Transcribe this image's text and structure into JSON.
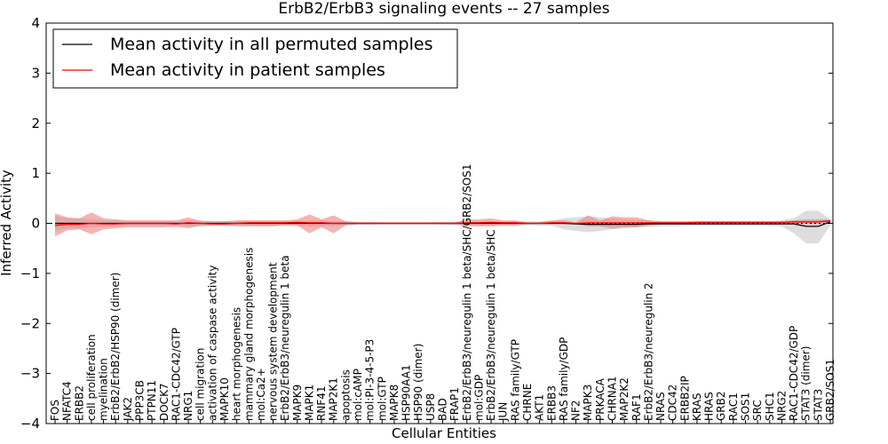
{
  "chart_data": {
    "type": "line",
    "title": "ErbB2/ErbB3 signaling events -- 27 samples",
    "xlabel": "Cellular Entities",
    "ylabel": "Inferred Activity",
    "ylim": [
      -4,
      4
    ],
    "yticks": [
      -4,
      -3,
      -2,
      -1,
      0,
      1,
      2,
      3,
      4
    ],
    "grid": false,
    "legend_placement": "top-left",
    "colors": {
      "permuted_line": "#000000",
      "patient_line": "#ff0000",
      "permuted_band": "#bbbbbb",
      "patient_band": "#f08080"
    },
    "categories": [
      "FOS",
      "NFATC4",
      "ERBB2",
      "cell proliferation",
      "myelination",
      "ErbB2/ErbB2/HSP90 (dimer)",
      "JAK2",
      "PPP3CB",
      "PTPN11",
      "DOCK7",
      "RAC1-CDC42/GTP",
      "NRG1",
      "cell migration",
      "activation of caspase activity",
      "MAPK10",
      "heart morphogenesis",
      "mammary gland morphogenesis",
      "mol:Ca2+",
      "nervous system development",
      "ErbB2/ErbB3/neuregulin 1 beta",
      "MAPK9",
      "MAPK1",
      "RNF41",
      "MAP2K1",
      "apoptosis",
      "mol:cAMP",
      "mol:PI-3-4-5-P3",
      "mol:GTP",
      "MAPK8",
      "HSP90AA1",
      "HSP90 (dimer)",
      "USP8",
      "BAD",
      "FRAP1",
      "ErbB2/ErbB3/neuregulin 1 beta/SHC/GRB2/SOS1",
      "mol:GDP",
      "ErbB2/ErbB3/neuregulin 1 beta/SHC",
      "JUN",
      "RAS family/GTP",
      "CHRNE",
      "AKT1",
      "ERBB3",
      "RAS family/GDP",
      "NF2",
      "MAPK3",
      "PRKACA",
      "CHRNA1",
      "MAP2K2",
      "RAF1",
      "ErbB2/ErbB3/neuregulin 2",
      "NRAS",
      "CDC42",
      "ERBB2IP",
      "KRAS",
      "HRAS",
      "GRB2",
      "RAC1",
      "SOS1",
      "SRC",
      "SHC1",
      "NRG2",
      "RAC1-CDC42/GDP",
      "STAT3 (dimer)",
      "STAT3",
      "GRB2/SOS1"
    ],
    "series": [
      {
        "name": "Mean activity in all permuted samples",
        "values": [
          0,
          0,
          0,
          0,
          0,
          0,
          0,
          0,
          0,
          0,
          0,
          0,
          0,
          0,
          0,
          0,
          0,
          0,
          0,
          0,
          0,
          0,
          0,
          0,
          0,
          0,
          0,
          0,
          0,
          0,
          0,
          0,
          0,
          0,
          0,
          0,
          0,
          0,
          0,
          0,
          0,
          0,
          0,
          -0.01,
          -0.02,
          -0.02,
          -0.02,
          -0.02,
          -0.02,
          -0.01,
          -0.01,
          -0.01,
          -0.01,
          -0.01,
          -0.01,
          -0.01,
          -0.01,
          -0.01,
          -0.01,
          -0.01,
          -0.01,
          -0.01,
          -0.06,
          -0.06,
          0.03
        ],
        "lower": [
          -0.15,
          -0.1,
          -0.1,
          -0.08,
          -0.06,
          -0.06,
          -0.05,
          -0.05,
          -0.05,
          -0.05,
          -0.05,
          -0.06,
          -0.06,
          -0.05,
          -0.05,
          -0.05,
          -0.05,
          -0.05,
          -0.05,
          -0.05,
          -0.05,
          -0.06,
          -0.06,
          -0.05,
          -0.04,
          -0.03,
          -0.03,
          -0.02,
          -0.02,
          -0.02,
          -0.02,
          -0.02,
          -0.03,
          -0.04,
          -0.04,
          -0.04,
          -0.04,
          -0.04,
          -0.04,
          -0.04,
          -0.04,
          -0.05,
          -0.12,
          -0.15,
          -0.18,
          -0.15,
          -0.12,
          -0.1,
          -0.08,
          -0.07,
          -0.06,
          -0.06,
          -0.05,
          -0.05,
          -0.05,
          -0.05,
          -0.05,
          -0.05,
          -0.05,
          -0.05,
          -0.06,
          -0.2,
          -0.4,
          -0.4,
          -0.05
        ],
        "upper": [
          0.15,
          0.1,
          0.1,
          0.08,
          0.06,
          0.06,
          0.05,
          0.05,
          0.05,
          0.05,
          0.05,
          0.06,
          0.06,
          0.05,
          0.05,
          0.05,
          0.05,
          0.05,
          0.05,
          0.05,
          0.05,
          0.06,
          0.06,
          0.05,
          0.04,
          0.03,
          0.03,
          0.02,
          0.02,
          0.02,
          0.02,
          0.02,
          0.03,
          0.04,
          0.04,
          0.04,
          0.04,
          0.04,
          0.04,
          0.04,
          0.04,
          0.05,
          0.1,
          0.12,
          0.14,
          0.12,
          0.1,
          0.08,
          0.07,
          0.06,
          0.05,
          0.05,
          0.05,
          0.05,
          0.05,
          0.05,
          0.05,
          0.05,
          0.05,
          0.05,
          0.06,
          0.1,
          0.25,
          0.25,
          0.08
        ]
      },
      {
        "name": "Mean activity in patient samples",
        "values": [
          -0.04,
          -0.02,
          -0.02,
          0,
          -0.01,
          -0.01,
          0,
          0,
          0,
          0,
          -0.01,
          0.01,
          0,
          -0.01,
          -0.01,
          0,
          0.01,
          0.01,
          0.01,
          0.01,
          0.02,
          0.01,
          0.01,
          0,
          0,
          0,
          0,
          0,
          0,
          0,
          0,
          0,
          0,
          0,
          0.01,
          0.01,
          0.02,
          0.01,
          0.01,
          0,
          0,
          0.01,
          0.01,
          0,
          0.01,
          0.01,
          0.01,
          0.01,
          0.01,
          0.01,
          0.01,
          0.01,
          0.01,
          0.02,
          0.02,
          0.02,
          0.02,
          0.02,
          0.02,
          0.02,
          0.02,
          0.03,
          0.03,
          0.03,
          0.05
        ],
        "lower": [
          -0.26,
          -0.14,
          -0.12,
          -0.22,
          -0.12,
          -0.1,
          -0.08,
          -0.08,
          -0.08,
          -0.08,
          -0.07,
          -0.1,
          -0.05,
          -0.04,
          -0.04,
          -0.06,
          -0.06,
          -0.06,
          -0.06,
          -0.04,
          -0.05,
          -0.2,
          -0.08,
          -0.2,
          -0.04,
          -0.02,
          -0.02,
          -0.02,
          -0.02,
          -0.02,
          -0.02,
          -0.02,
          -0.02,
          -0.02,
          -0.06,
          -0.06,
          -0.06,
          -0.05,
          -0.05,
          -0.02,
          -0.02,
          -0.02,
          -0.02,
          -0.02,
          -0.06,
          -0.06,
          -0.1,
          -0.08,
          -0.08,
          -0.05,
          -0.02,
          -0.02,
          -0.02,
          -0.02,
          -0.02,
          -0.02,
          -0.02,
          -0.02,
          -0.02,
          -0.02,
          -0.02,
          -0.02,
          -0.02,
          -0.02,
          0.02
        ],
        "upper": [
          0.2,
          0.12,
          0.1,
          0.22,
          0.1,
          0.08,
          0.06,
          0.06,
          0.06,
          0.06,
          0.06,
          0.12,
          0.05,
          0.04,
          0.04,
          0.06,
          0.06,
          0.06,
          0.06,
          0.06,
          0.08,
          0.18,
          0.08,
          0.16,
          0.04,
          0.02,
          0.02,
          0.02,
          0.02,
          0.02,
          0.02,
          0.02,
          0.02,
          0.02,
          0.08,
          0.08,
          0.1,
          0.06,
          0.06,
          0.02,
          0.02,
          0.06,
          0.06,
          0.02,
          0.16,
          0.06,
          0.14,
          0.12,
          0.12,
          0.06,
          0.04,
          0.04,
          0.04,
          0.04,
          0.04,
          0.04,
          0.04,
          0.04,
          0.04,
          0.04,
          0.04,
          0.06,
          0.08,
          0.08,
          0.08
        ]
      }
    ]
  }
}
